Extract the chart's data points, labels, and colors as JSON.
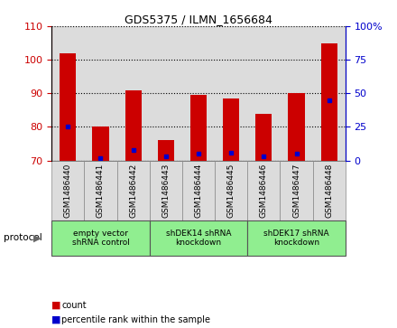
{
  "title": "GDS5375 / ILMN_1656684",
  "samples": [
    "GSM1486440",
    "GSM1486441",
    "GSM1486442",
    "GSM1486443",
    "GSM1486444",
    "GSM1486445",
    "GSM1486446",
    "GSM1486447",
    "GSM1486448"
  ],
  "count_values": [
    102,
    80,
    91,
    76,
    89.5,
    88.5,
    84,
    90,
    105
  ],
  "percentile_values": [
    25,
    2,
    8,
    3,
    5,
    6,
    3,
    5,
    45
  ],
  "ylim_left": [
    70,
    110
  ],
  "ylim_right": [
    0,
    100
  ],
  "yticks_left": [
    70,
    80,
    90,
    100,
    110
  ],
  "yticks_right": [
    0,
    25,
    50,
    75,
    100
  ],
  "bar_color": "#CC0000",
  "percentile_color": "#0000CC",
  "left_axis_color": "#CC0000",
  "right_axis_color": "#0000CC",
  "protocols": [
    {
      "label": "empty vector\nshRNA control",
      "start": 0,
      "end": 3
    },
    {
      "label": "shDEK14 shRNA\nknockdown",
      "start": 3,
      "end": 6
    },
    {
      "label": "shDEK17 shRNA\nknockdown",
      "start": 6,
      "end": 9
    }
  ],
  "protocol_label": "protocol",
  "legend_count": "count",
  "legend_percentile": "percentile rank within the sample",
  "bar_width": 0.5,
  "plot_bg_color": "#DCDCDC",
  "sample_box_color": "#DCDCDC",
  "protocol_color": "#90EE90"
}
